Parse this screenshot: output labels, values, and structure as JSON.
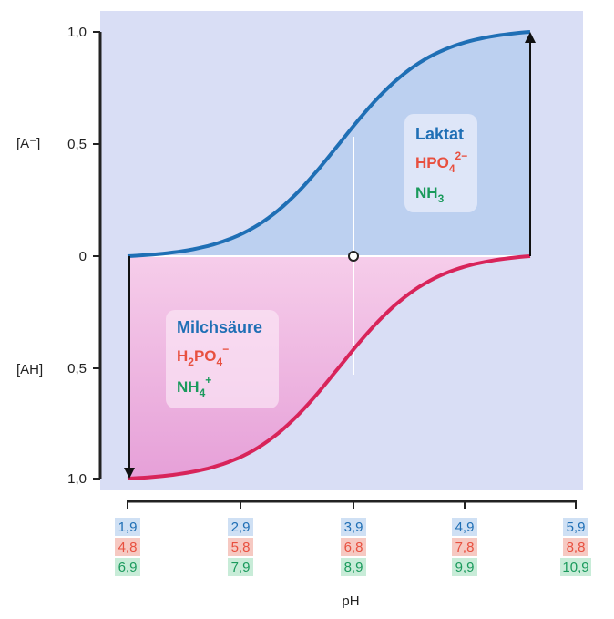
{
  "chart_data": {
    "type": "area",
    "xlabel": "pH",
    "ylabel_top": "[A⁻]",
    "ylabel_bottom": "[AH]",
    "yticks": [
      "1,0",
      "0,5",
      "0",
      "0,5",
      "1,0"
    ],
    "ylim": [
      -1,
      1
    ],
    "xlim_relative": [
      -2,
      1.8
    ],
    "x_relative": [
      -2,
      -1.5,
      -1,
      -0.5,
      0,
      0.5,
      1,
      1.5,
      1.8
    ],
    "series": [
      {
        "name": "[A⁻]",
        "values": [
          0.01,
          0.03,
          0.09,
          0.24,
          0.5,
          0.76,
          0.91,
          0.97,
          0.985
        ]
      },
      {
        "name": "[AH]",
        "values": [
          0.99,
          0.97,
          0.91,
          0.76,
          0.5,
          0.24,
          0.09,
          0.03,
          0.015
        ]
      }
    ],
    "ph_scales": [
      {
        "color": "#1f6fb5",
        "bg": "#cfe0f4",
        "labels": [
          "1,9",
          "2,9",
          "3,9",
          "4,9",
          "5,9"
        ]
      },
      {
        "color": "#e8503f",
        "bg": "#f6c9c2",
        "labels": [
          "4,8",
          "5,8",
          "6,8",
          "7,8",
          "8,8"
        ]
      },
      {
        "color": "#1a9a5c",
        "bg": "#c8ecd8",
        "labels": [
          "6,9",
          "7,9",
          "8,9",
          "9,9",
          "10,9"
        ]
      }
    ],
    "boxes": {
      "base": {
        "title": "Laktat",
        "title_color": "#1f6fb5",
        "species": [
          {
            "main": "HPO",
            "sub": "4",
            "sup": "2−",
            "color": "#e8503f"
          },
          {
            "main": "NH",
            "sub": "3",
            "sup": "",
            "color": "#1a9a5c"
          }
        ]
      },
      "acid": {
        "title": "Milchsäure",
        "title_color": "#1f6fb5",
        "species": [
          {
            "main": "H",
            "sub": "2",
            "main2": "PO",
            "sub2": "4",
            "sup": "−",
            "color": "#e8503f"
          },
          {
            "main": "NH",
            "sub": "4",
            "sup": "+",
            "color": "#1a9a5c"
          }
        ]
      }
    },
    "colors": {
      "background": "#d9def5",
      "base_curve": "#1f6fb5",
      "base_fill": "#bcd0f0",
      "acid_curve": "#d8245a",
      "acid_fill_top": "#f6cdea",
      "acid_fill_bottom": "#e6a0d8"
    }
  }
}
